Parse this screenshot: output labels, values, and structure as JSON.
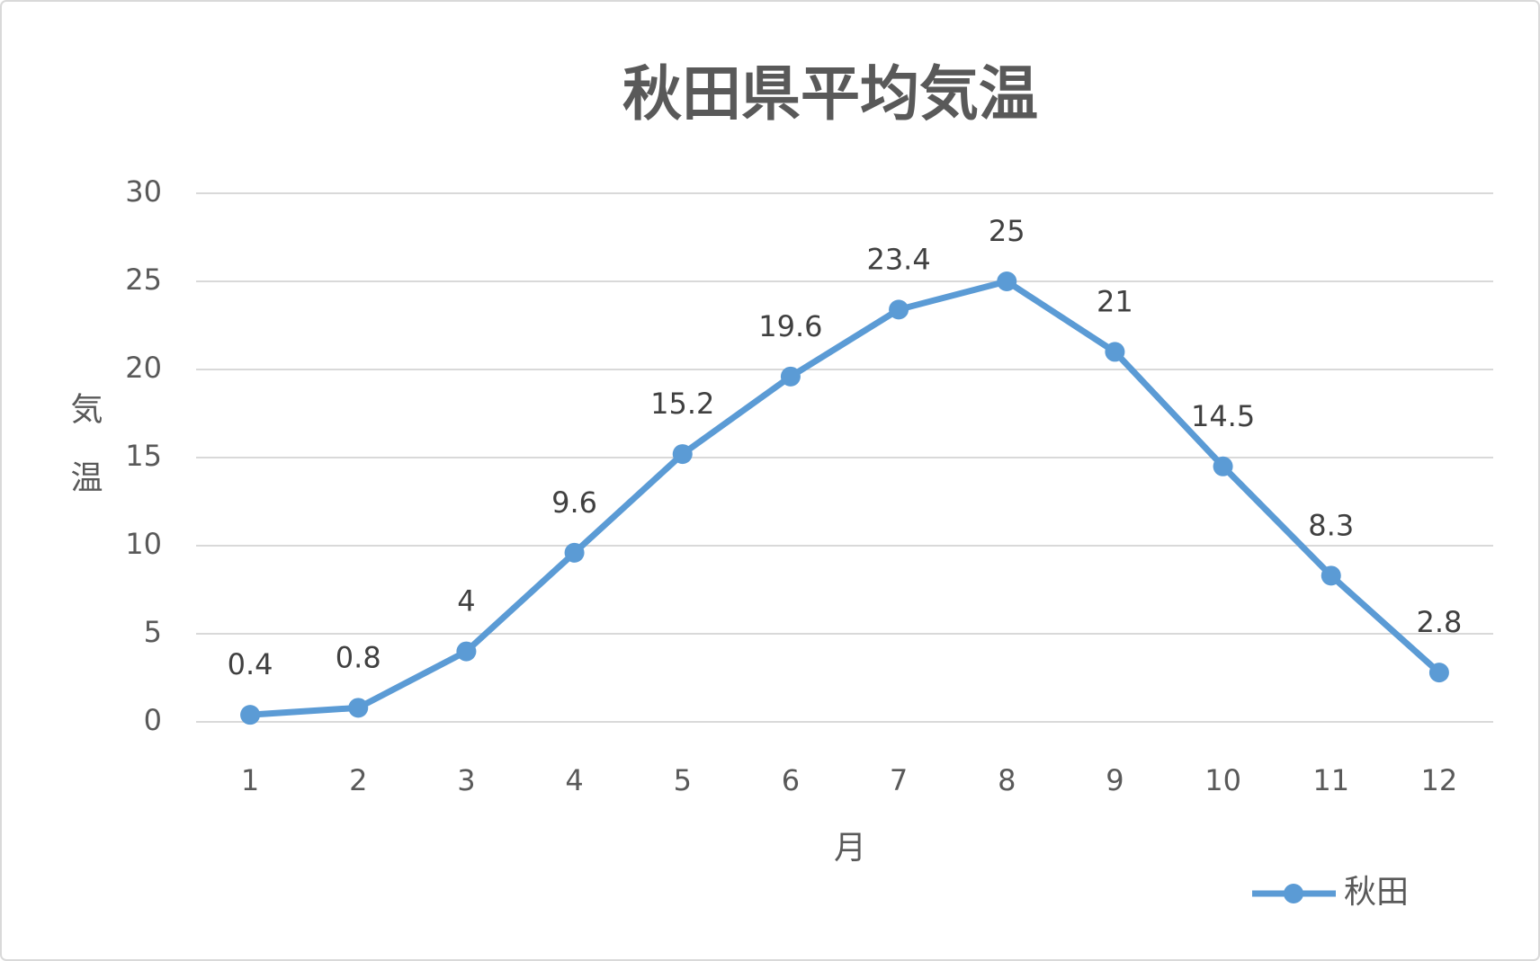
{
  "chart_data": {
    "type": "line",
    "title": "秋田県平均気温",
    "x_label": "月",
    "y_label": "気温",
    "categories": [
      "1",
      "2",
      "3",
      "4",
      "5",
      "6",
      "7",
      "8",
      "9",
      "10",
      "11",
      "12"
    ],
    "series": [
      {
        "name": "秋田",
        "color": "#5b9bd5",
        "values": [
          0.4,
          0.8,
          4,
          9.6,
          15.2,
          19.6,
          23.4,
          25,
          21,
          14.5,
          8.3,
          2.8
        ]
      }
    ],
    "ylim": [
      0,
      30
    ],
    "yticks": [
      0,
      5,
      10,
      15,
      20,
      25,
      30
    ],
    "grid": true,
    "legend": "bottom-right"
  }
}
